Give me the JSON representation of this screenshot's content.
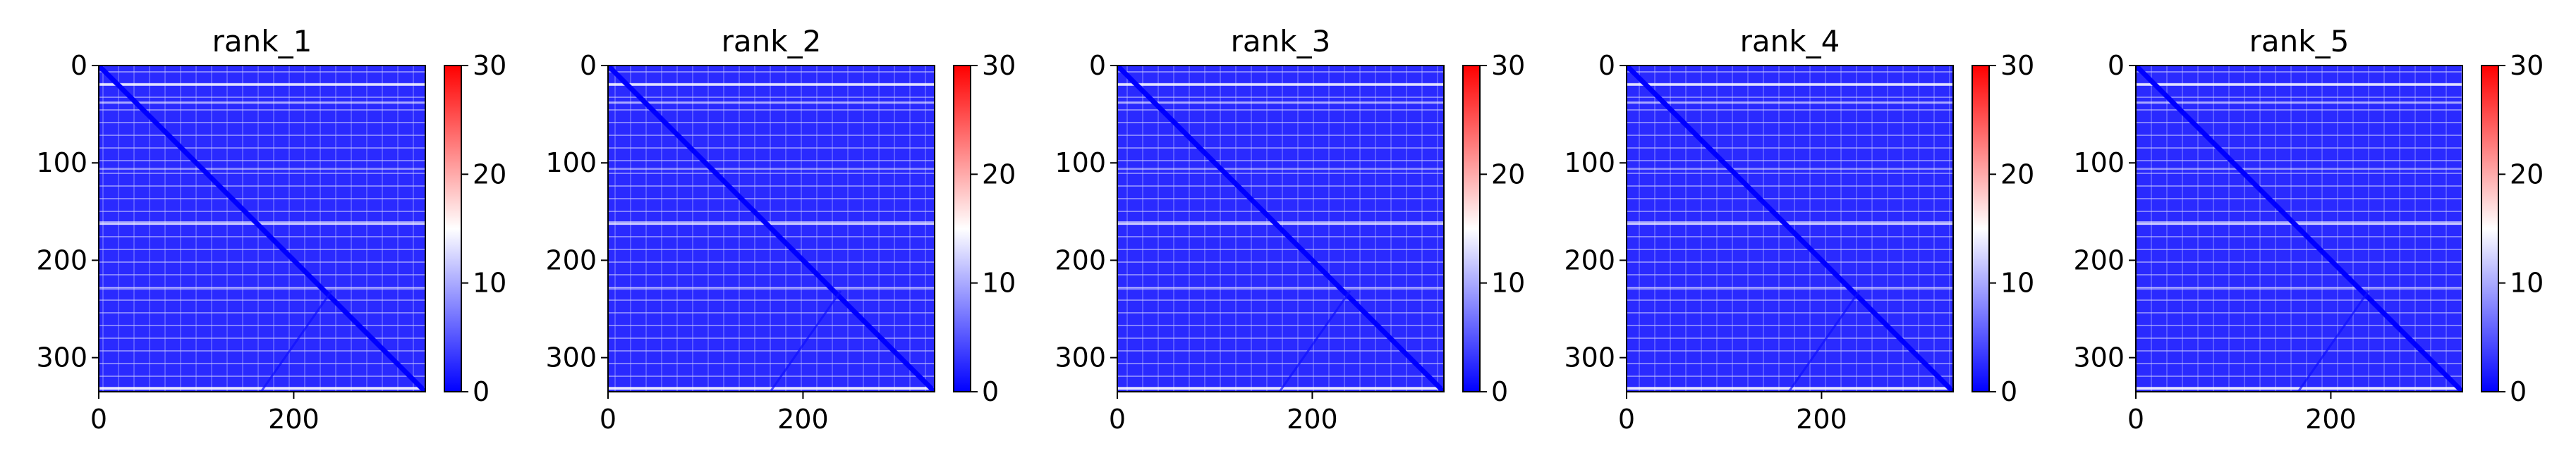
{
  "figure": {
    "background": "#ffffff"
  },
  "chart_data": [
    {
      "type": "heatmap",
      "title": "rank_1",
      "x_ticks": [
        0,
        200
      ],
      "y_ticks": [
        0,
        100,
        200,
        300
      ],
      "xlim": [
        0,
        335
      ],
      "ylim": [
        335,
        0
      ],
      "colorbar": {
        "ticks": [
          0,
          10,
          20,
          30
        ],
        "range": [
          0,
          30
        ],
        "colormap": "bwr",
        "colors": [
          "#0000ff",
          "#ffffff",
          "#ff0000"
        ]
      },
      "description": "distance map; low values (blue) dominate, diagonal near 0"
    },
    {
      "type": "heatmap",
      "title": "rank_2",
      "x_ticks": [
        0,
        200
      ],
      "y_ticks": [
        0,
        100,
        200,
        300
      ],
      "xlim": [
        0,
        335
      ],
      "ylim": [
        335,
        0
      ],
      "colorbar": {
        "ticks": [
          0,
          10,
          20,
          30
        ],
        "range": [
          0,
          30
        ],
        "colormap": "bwr",
        "colors": [
          "#0000ff",
          "#ffffff",
          "#ff0000"
        ]
      }
    },
    {
      "type": "heatmap",
      "title": "rank_3",
      "x_ticks": [
        0,
        200
      ],
      "y_ticks": [
        0,
        100,
        200,
        300
      ],
      "xlim": [
        0,
        335
      ],
      "ylim": [
        335,
        0
      ],
      "colorbar": {
        "ticks": [
          0,
          10,
          20,
          30
        ],
        "range": [
          0,
          30
        ],
        "colormap": "bwr",
        "colors": [
          "#0000ff",
          "#ffffff",
          "#ff0000"
        ]
      }
    },
    {
      "type": "heatmap",
      "title": "rank_4",
      "x_ticks": [
        0,
        200
      ],
      "y_ticks": [
        0,
        100,
        200,
        300
      ],
      "xlim": [
        0,
        335
      ],
      "ylim": [
        335,
        0
      ],
      "colorbar": {
        "ticks": [
          0,
          10,
          20,
          30
        ],
        "range": [
          0,
          30
        ],
        "colormap": "bwr",
        "colors": [
          "#0000ff",
          "#ffffff",
          "#ff0000"
        ]
      }
    },
    {
      "type": "heatmap",
      "title": "rank_5",
      "x_ticks": [
        0,
        200
      ],
      "y_ticks": [
        0,
        100,
        200,
        300
      ],
      "xlim": [
        0,
        335
      ],
      "ylim": [
        335,
        0
      ],
      "colorbar": {
        "ticks": [
          0,
          10,
          20,
          30
        ],
        "range": [
          0,
          30
        ],
        "colormap": "bwr",
        "colors": [
          "#0000ff",
          "#ffffff",
          "#ff0000"
        ]
      }
    }
  ]
}
